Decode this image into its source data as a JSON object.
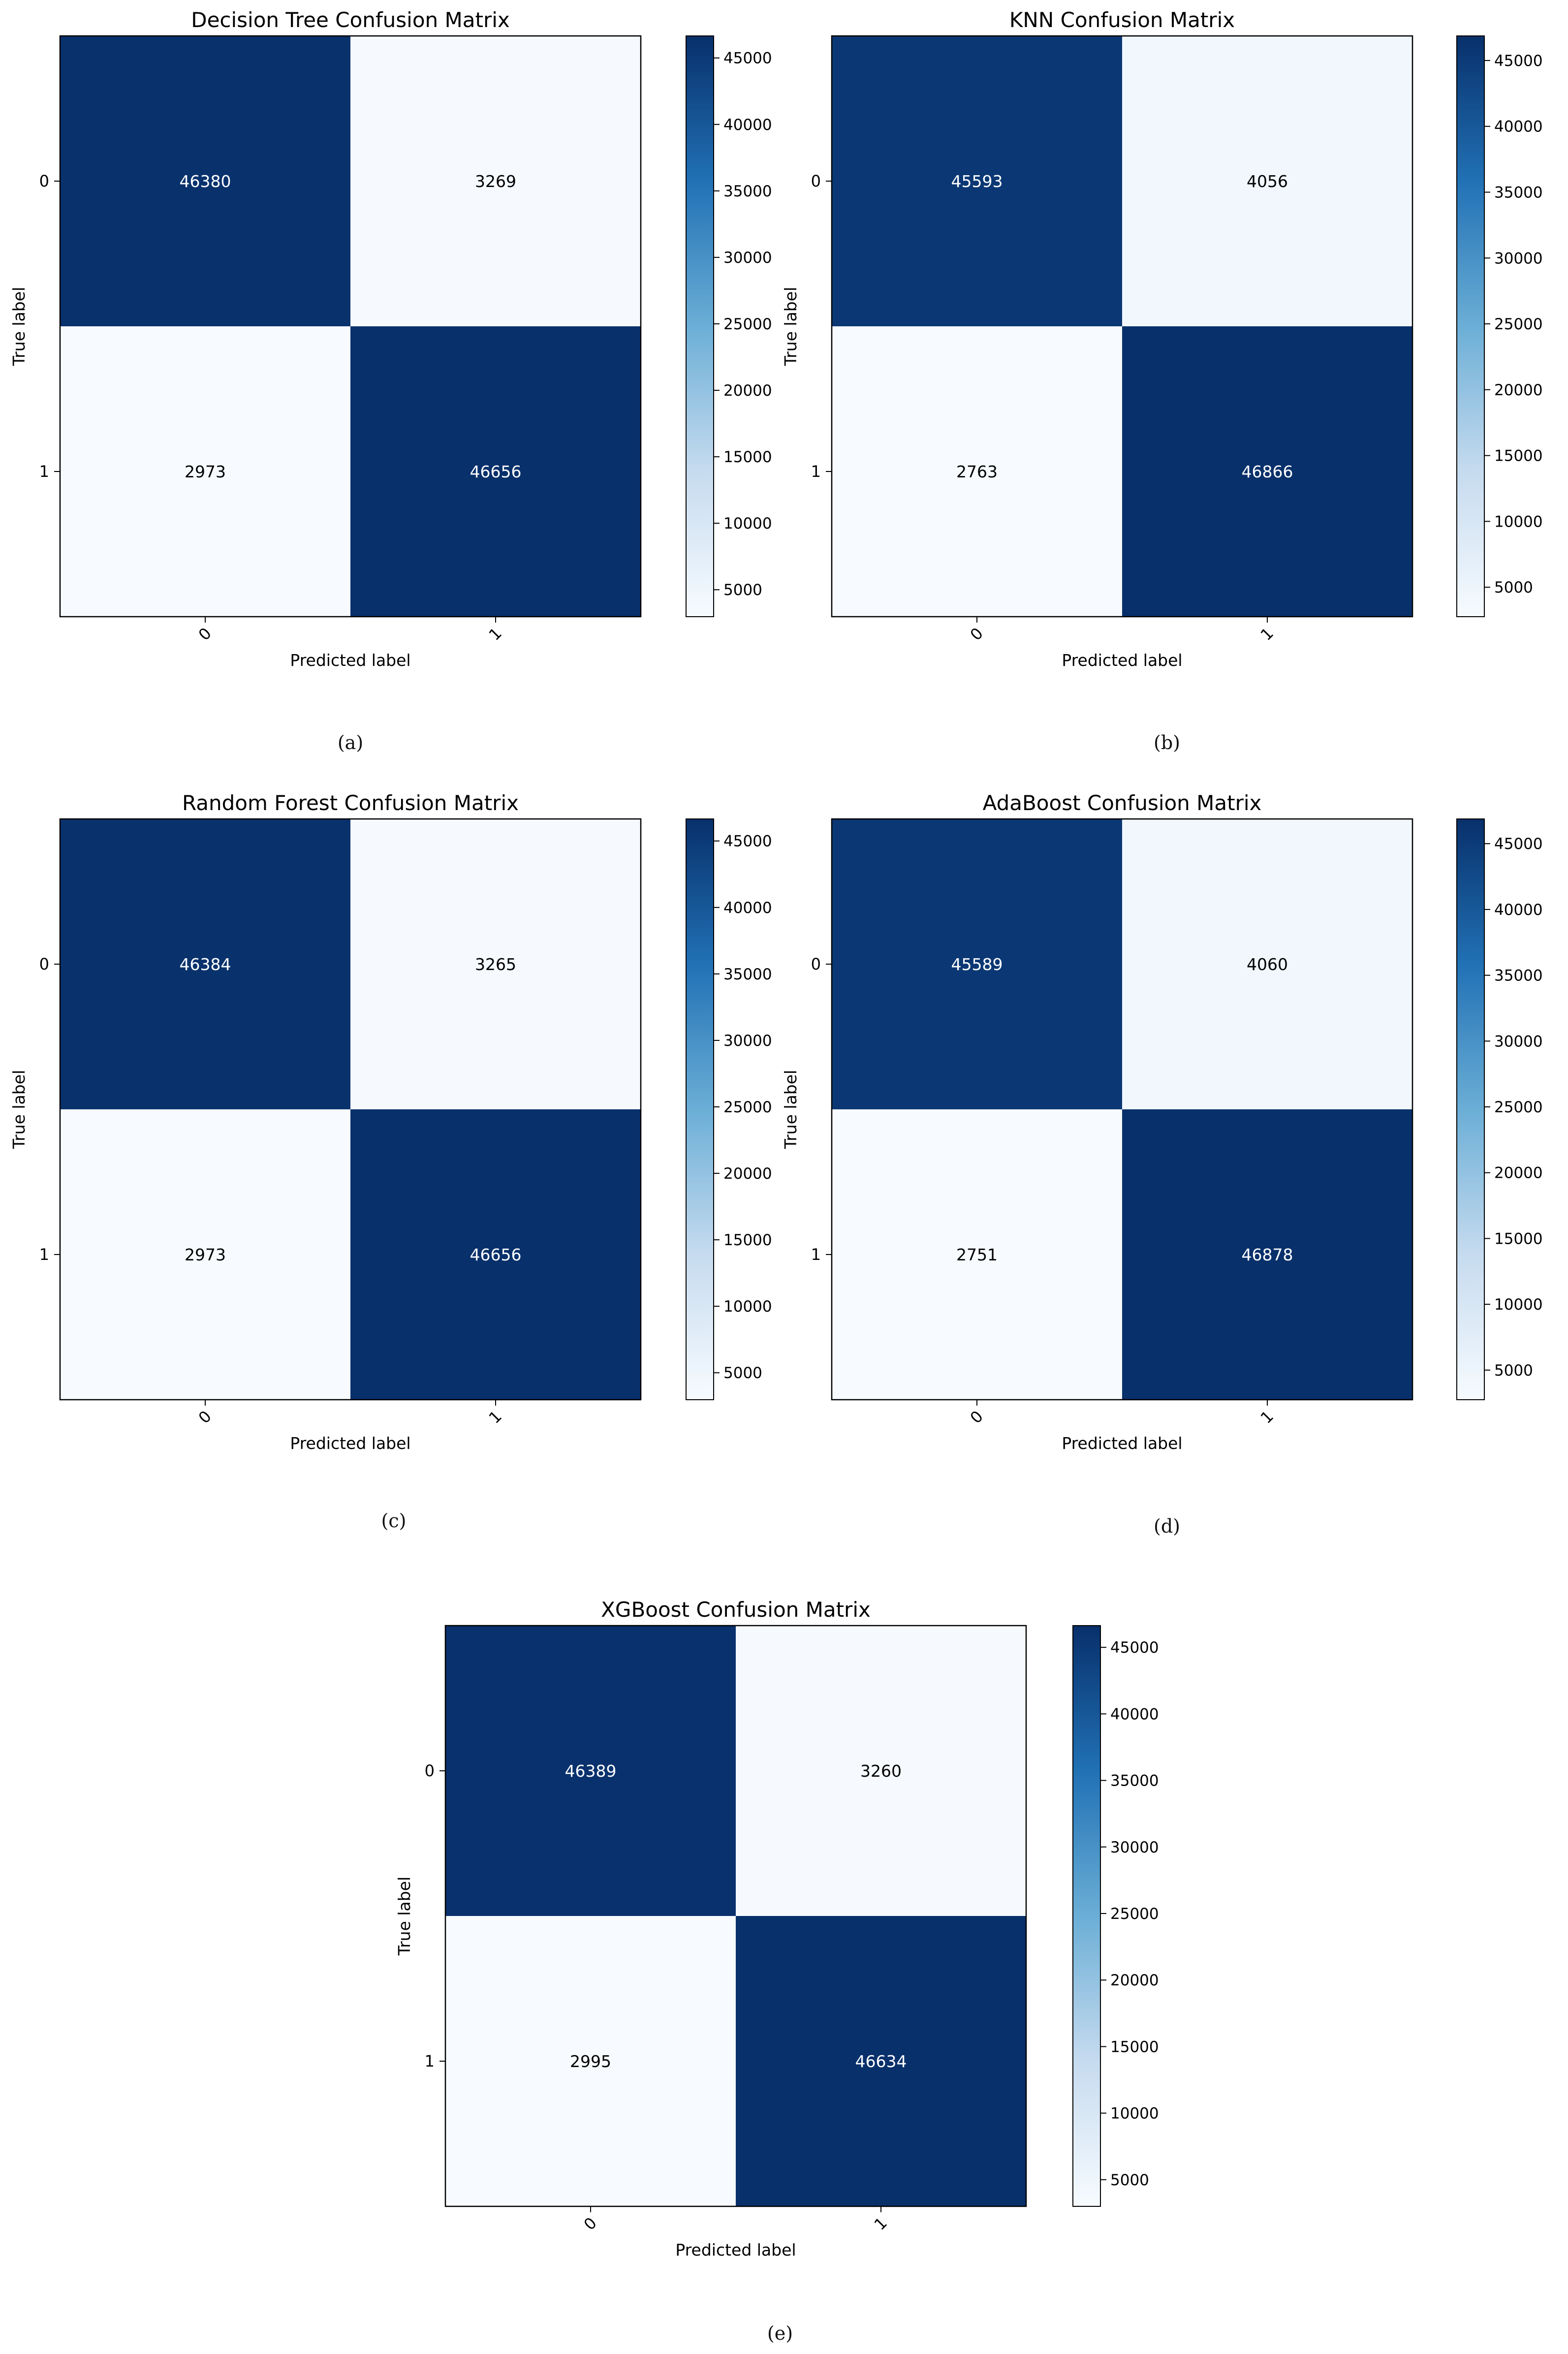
{
  "figure": {
    "panels": [
      {
        "id": "a",
        "caption": "(a)"
      },
      {
        "id": "b",
        "caption": "(b)"
      },
      {
        "id": "c",
        "caption": "(c)"
      },
      {
        "id": "d",
        "caption": "(d)"
      },
      {
        "id": "e",
        "caption": "(e)"
      }
    ]
  },
  "colors": {
    "cmap_low": "#f7fbff",
    "cmap_mid1": "#c6dbef",
    "cmap_mid2": "#6baed6",
    "cmap_mid3": "#2171b5",
    "cmap_high": "#08306b",
    "text_dark": "#000000",
    "text_light": "#ffffff"
  },
  "chart_data": [
    {
      "type": "heatmap",
      "title": "Decision Tree Confusion Matrix",
      "xlabel": "Predicted label",
      "ylabel": "True label",
      "x_categories": [
        "0",
        "1"
      ],
      "y_categories": [
        "0",
        "1"
      ],
      "matrix": [
        [
          46380,
          3269
        ],
        [
          2973,
          46656
        ]
      ],
      "colorbar": {
        "min": 2973,
        "max": 46656,
        "ticks": [
          5000,
          10000,
          15000,
          20000,
          25000,
          30000,
          35000,
          40000,
          45000
        ]
      },
      "colormap": "Blues"
    },
    {
      "type": "heatmap",
      "title": "KNN Confusion Matrix",
      "xlabel": "Predicted label",
      "ylabel": "True label",
      "x_categories": [
        "0",
        "1"
      ],
      "y_categories": [
        "0",
        "1"
      ],
      "matrix": [
        [
          45593,
          4056
        ],
        [
          2763,
          46866
        ]
      ],
      "colorbar": {
        "min": 2763,
        "max": 46866,
        "ticks": [
          5000,
          10000,
          15000,
          20000,
          25000,
          30000,
          35000,
          40000,
          45000
        ]
      },
      "colormap": "Blues"
    },
    {
      "type": "heatmap",
      "title": "Random Forest Confusion Matrix",
      "xlabel": "Predicted label",
      "ylabel": "True label",
      "x_categories": [
        "0",
        "1"
      ],
      "y_categories": [
        "0",
        "1"
      ],
      "matrix": [
        [
          46384,
          3265
        ],
        [
          2973,
          46656
        ]
      ],
      "colorbar": {
        "min": 2973,
        "max": 46656,
        "ticks": [
          5000,
          10000,
          15000,
          20000,
          25000,
          30000,
          35000,
          40000,
          45000
        ]
      },
      "colormap": "Blues"
    },
    {
      "type": "heatmap",
      "title": "AdaBoost Confusion Matrix",
      "xlabel": "Predicted label",
      "ylabel": "True label",
      "x_categories": [
        "0",
        "1"
      ],
      "y_categories": [
        "0",
        "1"
      ],
      "matrix": [
        [
          45589,
          4060
        ],
        [
          2751,
          46878
        ]
      ],
      "colorbar": {
        "min": 2751,
        "max": 46878,
        "ticks": [
          5000,
          10000,
          15000,
          20000,
          25000,
          30000,
          35000,
          40000,
          45000
        ]
      },
      "colormap": "Blues"
    },
    {
      "type": "heatmap",
      "title": "XGBoost Confusion Matrix",
      "xlabel": "Predicted label",
      "ylabel": "True label",
      "x_categories": [
        "0",
        "1"
      ],
      "y_categories": [
        "0",
        "1"
      ],
      "matrix": [
        [
          46389,
          3260
        ],
        [
          2995,
          46634
        ]
      ],
      "colorbar": {
        "min": 2995,
        "max": 46634,
        "ticks": [
          5000,
          10000,
          15000,
          20000,
          25000,
          30000,
          35000,
          40000,
          45000
        ]
      },
      "colormap": "Blues"
    }
  ]
}
